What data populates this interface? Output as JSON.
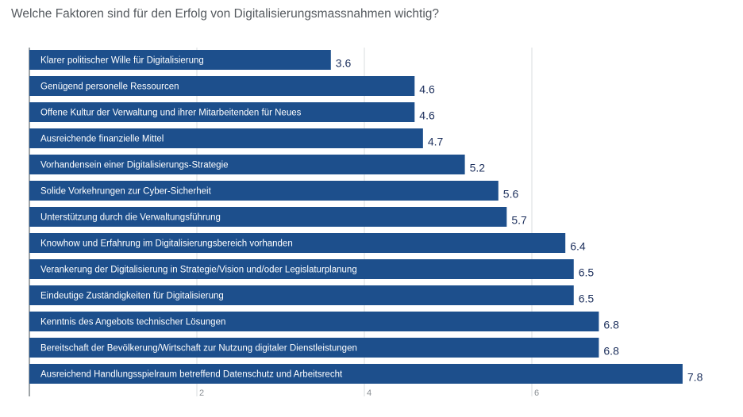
{
  "chart_data": {
    "type": "bar",
    "orientation": "horizontal",
    "title": "Welche Faktoren sind für den Erfolg von Digitalisierungsmassnahmen wichtig?",
    "categories": [
      "Klarer politischer Wille für Digitalisierung",
      "Genügend personelle Ressourcen",
      "Offene Kultur der Verwaltung und ihrer Mitarbeitenden für Neues",
      "Ausreichende finanzielle Mittel",
      "Vorhandensein einer Digitalisierungs-Strategie",
      "Solide Vorkehrungen zur Cyber-Sicherheit",
      "Unterstützung durch die Verwaltungsführung",
      "Knowhow und Erfahrung im Digitalisierungsbereich vorhanden",
      "Verankerung der Digitalisierung in Strategie/Vision und/oder Legislaturplanung",
      "Eindeutige Zuständigkeiten für Digitalisierung",
      "Kenntnis des Angebots technischer Lösungen",
      "Bereitschaft der Bevölkerung/Wirtschaft zur Nutzung digitaler Dienstleistungen",
      "Ausreichend Handlungsspielraum betreffend Datenschutz und Arbeitsrecht"
    ],
    "values": [
      3.6,
      4.6,
      4.6,
      4.7,
      5.2,
      5.6,
      5.7,
      6.4,
      6.5,
      6.5,
      6.8,
      6.8,
      7.8
    ],
    "value_labels": [
      "3.6",
      "4.6",
      "4.6",
      "4.7",
      "5.2",
      "5.6",
      "5.7",
      "6.4",
      "6.5",
      "6.5",
      "6.8",
      "6.8",
      "7.8"
    ],
    "xlim": [
      0,
      8.5
    ],
    "xticks": [
      2,
      4,
      6
    ],
    "xtick_labels": [
      "2",
      "4",
      "6"
    ],
    "grid": true,
    "bar_color": "#1d4f8c",
    "value_label_color": "#1c2f5c"
  }
}
